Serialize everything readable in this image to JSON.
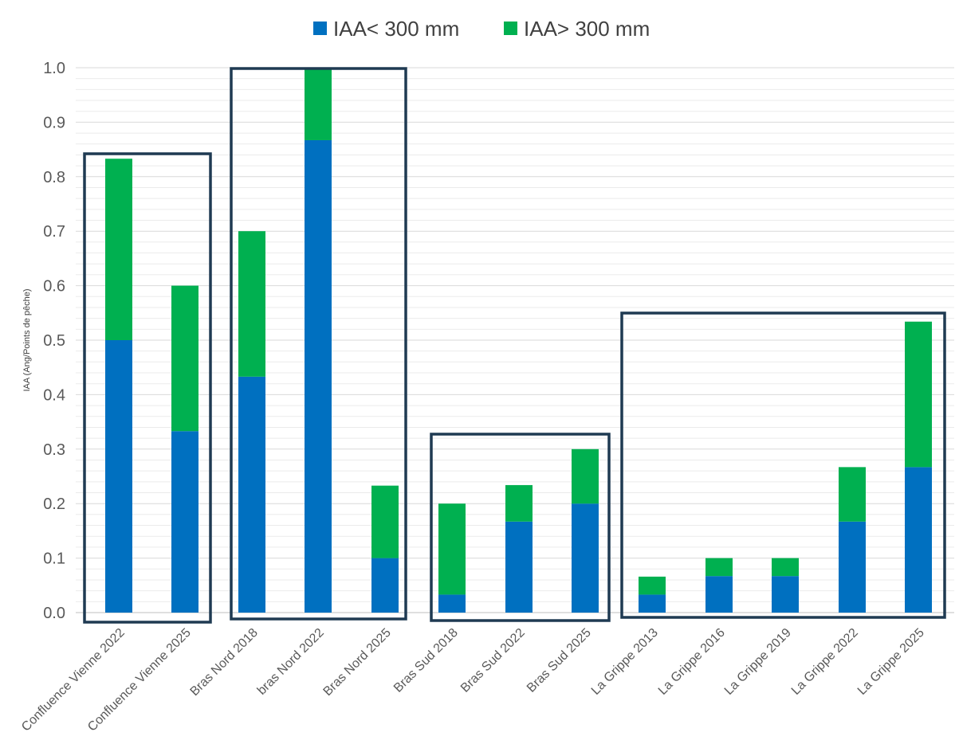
{
  "chart_data": {
    "type": "bar",
    "stacked": true,
    "ylabel": "IAA (Ang/Points de pêche)",
    "ylim": [
      0,
      1.0
    ],
    "yticks": [
      "0.0",
      "0.1",
      "0.2",
      "0.3",
      "0.4",
      "0.5",
      "0.6",
      "0.7",
      "0.8",
      "0.9",
      "1.0"
    ],
    "grid": true,
    "legend_position": "top-center",
    "categories": [
      "Confluence Vienne 2022",
      "Confluence Vienne 2025",
      "Bras Nord 2018",
      "bras Nord 2022",
      "Bras Nord 2025",
      "Bras Sud 2018",
      "Bras Sud 2022",
      "Bras Sud 2025",
      "La Grippe 2013",
      "La Grippe 2016",
      "La Grippe 2019",
      "La Grippe 2022",
      "La Grippe 2025"
    ],
    "series": [
      {
        "name": "IAA< 300 mm",
        "color": "#0070C0",
        "values": [
          0.5,
          0.333,
          0.433,
          0.867,
          0.1,
          0.033,
          0.167,
          0.2,
          0.033,
          0.067,
          0.067,
          0.167,
          0.267
        ]
      },
      {
        "name": "IAA> 300 mm",
        "color": "#00B050",
        "values": [
          0.333,
          0.267,
          0.267,
          0.133,
          0.133,
          0.167,
          0.067,
          0.1,
          0.033,
          0.033,
          0.033,
          0.1,
          0.267
        ]
      }
    ],
    "group_frame_color": "#1F3A52"
  }
}
